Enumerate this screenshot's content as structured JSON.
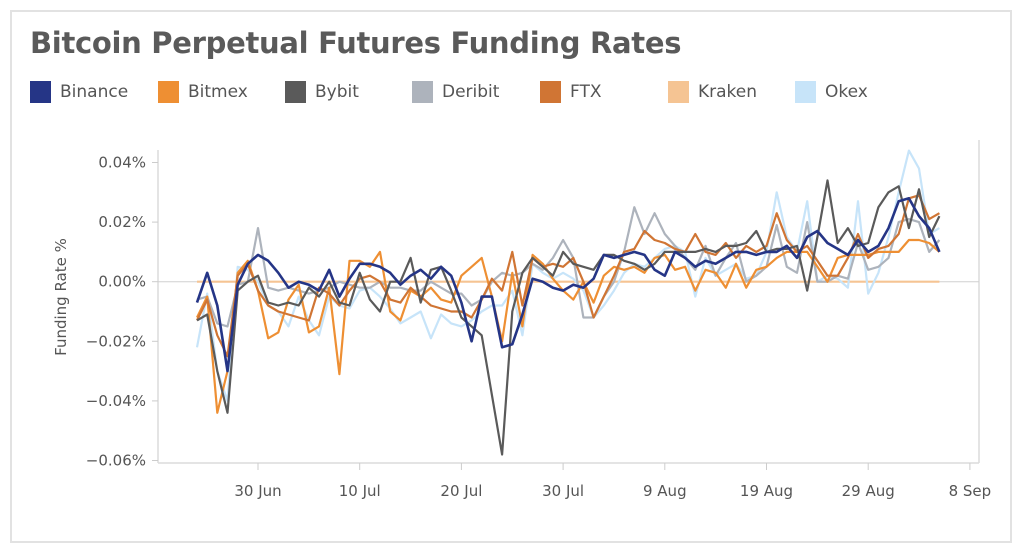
{
  "chart_data": {
    "type": "line",
    "title": "Bitcoin Perpetual Futures Funding Rates",
    "ylabel": "Funding Rate %",
    "xlabel": "",
    "ylim": [
      -0.065,
      0.045
    ],
    "xlim": [
      "20 Jun",
      "9 Sep"
    ],
    "yticks": [
      0.04,
      0.02,
      0.0,
      -0.02,
      -0.04,
      -0.06
    ],
    "ytick_labels": [
      "0.04%",
      "0.02%",
      "0.00%",
      "−0.02%",
      "−0.04%",
      "−0.06%"
    ],
    "xticks": [
      "30 Jun",
      "10 Jul",
      "20 Jul",
      "30 Jul",
      "9 Aug",
      "19 Aug",
      "29 Aug",
      "8 Sep"
    ],
    "grid": "zero line only",
    "legend": "top-left",
    "x": [
      "24 Jun",
      "25 Jun",
      "26 Jun",
      "27 Jun",
      "28 Jun",
      "29 Jun",
      "30 Jun",
      "1 Jul",
      "2 Jul",
      "3 Jul",
      "4 Jul",
      "5 Jul",
      "6 Jul",
      "7 Jul",
      "8 Jul",
      "9 Jul",
      "10 Jul",
      "11 Jul",
      "12 Jul",
      "13 Jul",
      "14 Jul",
      "15 Jul",
      "16 Jul",
      "17 Jul",
      "18 Jul",
      "19 Jul",
      "20 Jul",
      "21 Jul",
      "22 Jul",
      "23 Jul",
      "24 Jul",
      "25 Jul",
      "26 Jul",
      "27 Jul",
      "28 Jul",
      "29 Jul",
      "30 Jul",
      "31 Jul",
      "1 Aug",
      "2 Aug",
      "3 Aug",
      "4 Aug",
      "5 Aug",
      "6 Aug",
      "7 Aug",
      "8 Aug",
      "9 Aug",
      "10 Aug",
      "11 Aug",
      "12 Aug",
      "13 Aug",
      "14 Aug",
      "15 Aug",
      "16 Aug",
      "17 Aug",
      "18 Aug",
      "19 Aug",
      "20 Aug",
      "21 Aug",
      "22 Aug",
      "23 Aug",
      "24 Aug",
      "25 Aug",
      "26 Aug",
      "27 Aug",
      "28 Aug",
      "29 Aug",
      "30 Aug",
      "31 Aug",
      "1 Sep",
      "2 Sep",
      "3 Sep",
      "4 Sep",
      "5 Sep"
    ],
    "series": [
      {
        "name": "Binance",
        "color": "#253586",
        "values": [
          -0.007,
          0.003,
          -0.008,
          -0.03,
          -0.001,
          0.006,
          0.009,
          0.007,
          0.003,
          -0.002,
          0.0,
          -0.001,
          -0.003,
          0.004,
          -0.005,
          0.001,
          0.006,
          0.006,
          0.005,
          0.003,
          -0.001,
          0.002,
          0.004,
          0.001,
          0.005,
          0.002,
          -0.007,
          -0.02,
          -0.005,
          -0.005,
          -0.022,
          -0.021,
          -0.011,
          0.001,
          0.0,
          -0.002,
          -0.003,
          -0.001,
          -0.002,
          0.001,
          0.009,
          0.008,
          0.009,
          0.01,
          0.009,
          0.004,
          0.002,
          0.01,
          0.008,
          0.005,
          0.007,
          0.006,
          0.008,
          0.01,
          0.01,
          0.009,
          0.01,
          0.01,
          0.012,
          0.008,
          0.015,
          0.017,
          0.013,
          0.011,
          0.009,
          0.014,
          0.01,
          0.012,
          0.018,
          0.027,
          0.028,
          0.022,
          0.018,
          0.01
        ]
      },
      {
        "name": "Bitmex",
        "color": "#ee8f33",
        "values": [
          -0.012,
          -0.005,
          -0.044,
          -0.03,
          0.003,
          0.007,
          -0.003,
          -0.019,
          -0.017,
          -0.006,
          -0.001,
          -0.017,
          -0.015,
          -0.002,
          -0.031,
          0.007,
          0.007,
          0.005,
          0.01,
          -0.01,
          -0.013,
          -0.003,
          -0.005,
          -0.002,
          -0.006,
          -0.007,
          0.002,
          0.005,
          0.008,
          -0.005,
          -0.02,
          0.003,
          -0.015,
          0.009,
          0.006,
          0.001,
          -0.003,
          -0.006,
          0.0,
          -0.007,
          0.002,
          0.005,
          0.004,
          0.005,
          0.003,
          0.008,
          0.009,
          0.004,
          0.005,
          -0.003,
          0.004,
          0.003,
          -0.002,
          0.006,
          -0.002,
          0.004,
          0.005,
          0.008,
          0.01,
          0.01,
          0.01,
          0.005,
          0.0,
          0.008,
          0.009,
          0.009,
          0.009,
          0.01,
          0.01,
          0.01,
          0.014,
          0.014,
          0.013,
          0.01
        ]
      },
      {
        "name": "Bybit",
        "color": "#5a5a5a",
        "values": [
          -0.013,
          -0.011,
          -0.03,
          -0.044,
          -0.003,
          0.0,
          0.002,
          -0.007,
          -0.008,
          -0.007,
          -0.008,
          -0.002,
          -0.005,
          0.0,
          -0.007,
          -0.008,
          0.003,
          -0.006,
          -0.01,
          0.0,
          0.0,
          0.008,
          -0.007,
          0.004,
          0.005,
          -0.003,
          -0.012,
          -0.015,
          -0.018,
          -0.038,
          -0.058,
          -0.01,
          0.003,
          0.008,
          0.005,
          0.002,
          0.01,
          0.006,
          0.005,
          0.004,
          0.009,
          0.009,
          0.007,
          0.006,
          0.004,
          0.006,
          0.01,
          0.01,
          0.01,
          0.01,
          0.011,
          0.01,
          0.012,
          0.012,
          0.013,
          0.017,
          0.01,
          0.011,
          0.011,
          0.012,
          -0.003,
          0.015,
          0.034,
          0.013,
          0.018,
          0.012,
          0.013,
          0.025,
          0.03,
          0.032,
          0.018,
          0.031,
          0.015,
          0.022
        ]
      },
      {
        "name": "Deribit",
        "color": "#adb3bc",
        "values": [
          -0.006,
          -0.005,
          -0.014,
          -0.015,
          -0.001,
          0.0,
          0.018,
          -0.002,
          -0.003,
          -0.002,
          -0.003,
          -0.004,
          -0.003,
          -0.002,
          0.0,
          -0.001,
          -0.002,
          -0.002,
          0.0,
          -0.002,
          -0.002,
          -0.003,
          -0.003,
          0.0,
          -0.002,
          -0.004,
          -0.004,
          -0.008,
          -0.006,
          0.0,
          0.003,
          0.002,
          0.003,
          0.006,
          0.004,
          0.008,
          0.014,
          0.008,
          -0.012,
          -0.012,
          -0.005,
          0.0,
          0.01,
          0.025,
          0.016,
          0.023,
          0.016,
          0.012,
          0.008,
          0.004,
          0.012,
          0.002,
          0.008,
          0.013,
          0.0,
          0.002,
          0.005,
          0.019,
          0.005,
          0.003,
          0.02,
          0.0,
          0.0,
          0.002,
          0.001,
          0.013,
          0.004,
          0.005,
          0.008,
          0.02,
          0.021,
          0.02,
          0.01,
          0.014
        ]
      },
      {
        "name": "FTX",
        "color": "#d07534",
        "values": [
          -0.013,
          -0.006,
          -0.018,
          -0.025,
          0.002,
          0.006,
          -0.003,
          -0.008,
          -0.01,
          -0.011,
          -0.012,
          -0.013,
          -0.002,
          -0.004,
          -0.008,
          -0.003,
          0.001,
          0.002,
          0.0,
          -0.006,
          -0.007,
          -0.002,
          -0.005,
          -0.008,
          -0.009,
          -0.01,
          -0.01,
          -0.012,
          -0.006,
          0.001,
          -0.003,
          0.01,
          -0.008,
          0.008,
          0.005,
          0.006,
          0.005,
          0.008,
          0.0,
          -0.012,
          -0.005,
          0.002,
          0.01,
          0.011,
          0.017,
          0.014,
          0.013,
          0.011,
          0.01,
          0.016,
          0.01,
          0.009,
          0.013,
          0.008,
          0.012,
          0.01,
          0.012,
          0.023,
          0.014,
          0.01,
          0.012,
          0.007,
          0.002,
          0.002,
          0.008,
          0.016,
          0.008,
          0.011,
          0.012,
          0.016,
          0.028,
          0.029,
          0.021,
          0.023
        ]
      },
      {
        "name": "Kraken",
        "color": "#f5c493",
        "values": [
          0,
          0,
          0,
          0,
          0,
          0,
          0,
          0,
          0,
          0,
          0,
          0,
          0,
          0,
          0,
          0,
          0,
          0,
          0,
          0,
          0,
          0,
          0,
          0,
          0,
          0,
          0,
          0,
          0,
          0,
          0,
          0,
          0,
          0,
          0,
          0,
          0,
          0,
          0,
          0,
          0,
          0,
          0,
          0,
          0,
          0,
          0,
          0,
          0,
          0,
          0,
          0,
          0,
          0,
          0,
          0,
          0,
          0,
          0,
          0,
          0,
          0,
          0,
          0,
          0,
          0,
          0,
          0,
          0,
          0,
          0,
          0,
          0,
          0
        ]
      },
      {
        "name": "Okex",
        "color": "#c7e4f9",
        "values": [
          -0.022,
          -0.004,
          -0.03,
          -0.04,
          0.005,
          0.004,
          0.0,
          -0.008,
          -0.01,
          -0.015,
          -0.005,
          -0.013,
          -0.018,
          -0.005,
          -0.008,
          -0.009,
          -0.003,
          -0.002,
          -0.005,
          -0.009,
          -0.014,
          -0.012,
          -0.01,
          -0.019,
          -0.011,
          -0.014,
          -0.015,
          -0.013,
          -0.01,
          -0.008,
          -0.008,
          -0.003,
          -0.018,
          0.006,
          0.003,
          0.001,
          0.003,
          0.001,
          -0.003,
          -0.012,
          -0.008,
          -0.003,
          0.003,
          0.006,
          0.005,
          0.008,
          0.011,
          0.012,
          0.01,
          -0.005,
          0.008,
          0.002,
          0.004,
          0.006,
          0.001,
          0.002,
          0.01,
          0.03,
          0.015,
          0.01,
          0.027,
          0.0,
          0.002,
          0.001,
          -0.002,
          0.027,
          -0.004,
          0.003,
          0.015,
          0.03,
          0.044,
          0.038,
          0.016,
          0.018
        ]
      }
    ]
  }
}
